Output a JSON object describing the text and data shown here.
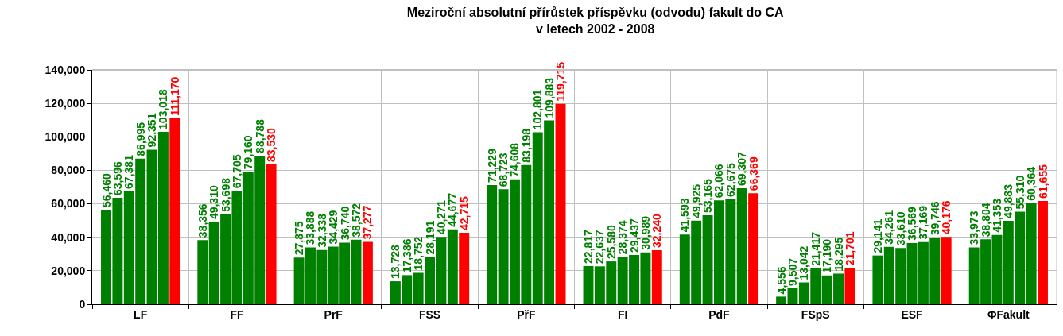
{
  "chart_data": {
    "type": "bar",
    "title": "Meziroční absolutní přírůstek příspěvku (odvodu) fakult do CA\nv letech 2002 - 2008",
    "categories": [
      "LF",
      "FF",
      "PrF",
      "FSS",
      "PřF",
      "FI",
      "PdF",
      "FSpS",
      "ESF",
      "ΦFakult"
    ],
    "series": [
      {
        "color": "#008000",
        "values": [
          56460,
          38356,
          27875,
          13728,
          71229,
          22817,
          41593,
          4556,
          29141,
          33973
        ],
        "value_labels": [
          "56,460",
          "38,356",
          "27,875",
          "13,728",
          "71,229",
          "22,817",
          "41,593",
          "4,556",
          "29,141",
          "33,973"
        ]
      },
      {
        "color": "#008000",
        "values": [
          63596,
          49310,
          33888,
          17386,
          68723,
          22637,
          49925,
          9507,
          34261,
          38804
        ],
        "value_labels": [
          "63,596",
          "49,310",
          "33,888",
          "17,386",
          "68,723",
          "22,637",
          "49,925",
          "9,507",
          "34,261",
          "38,804"
        ]
      },
      {
        "color": "#008000",
        "values": [
          67381,
          53698,
          32338,
          18752,
          74608,
          25580,
          53165,
          13042,
          33610,
          41353
        ],
        "value_labels": [
          "67,381",
          "53,698",
          "32,338",
          "18,752",
          "74,608",
          "25,580",
          "53,165",
          "13,042",
          "33,610",
          "41,353"
        ]
      },
      {
        "color": "#008000",
        "values": [
          86995,
          67705,
          34429,
          28191,
          83198,
          28374,
          62066,
          21417,
          36569,
          49883
        ],
        "value_labels": [
          "86,995",
          "67,705",
          "34,429",
          "28,191",
          "83,198",
          "28,374",
          "62,066",
          "21,417",
          "36,569",
          "49,883"
        ]
      },
      {
        "color": "#008000",
        "values": [
          92351,
          79160,
          36740,
          40271,
          102801,
          29437,
          62675,
          17190,
          37169,
          55310
        ],
        "value_labels": [
          "92,351",
          "79,160",
          "36,740",
          "40,271",
          "102,801",
          "29,437",
          "62,675",
          "17,190",
          "37,169",
          "55,310"
        ]
      },
      {
        "color": "#008000",
        "values": [
          103018,
          88788,
          38572,
          44677,
          109883,
          30989,
          69307,
          18295,
          39746,
          60364
        ],
        "value_labels": [
          "103,018",
          "88,788",
          "38,572",
          "44,677",
          "109,883",
          "30,989",
          "69,307",
          "18,295",
          "39,746",
          "60,364"
        ]
      },
      {
        "color": "#ff0000",
        "values": [
          111170,
          83530,
          37277,
          42715,
          119715,
          32240,
          66369,
          21701,
          40176,
          61655
        ],
        "value_labels": [
          "111,170",
          "83,530",
          "37,277",
          "42,715",
          "119,715",
          "32,240",
          "66,369",
          "21,701",
          "40,176",
          "61,655"
        ]
      }
    ],
    "ylim": [
      0,
      140000
    ],
    "yticks": [
      0,
      {
        "value": 20000,
        "label": "20,000"
      },
      {
        "value": 40000,
        "label": "40,000"
      },
      {
        "value": 60000,
        "label": "60,000"
      },
      {
        "value": 80000,
        "label": "80,000"
      },
      {
        "value": 100000,
        "label": "100,000"
      },
      {
        "value": 120000,
        "label": "120,000"
      },
      {
        "value": 140000,
        "label": "140,000"
      }
    ],
    "grid": true
  }
}
